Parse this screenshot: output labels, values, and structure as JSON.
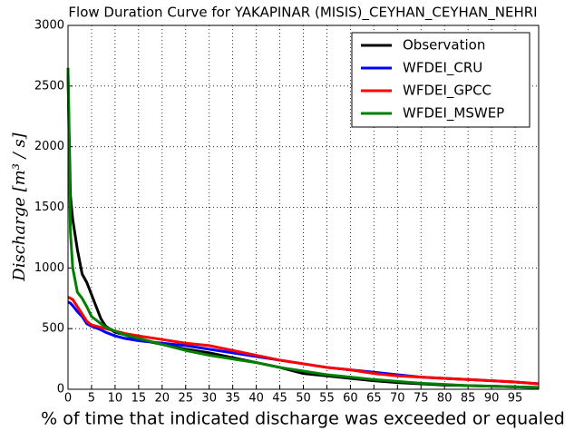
{
  "chart_data": {
    "type": "line",
    "title": "Flow Duration Curve for YAKAPINAR (MISIS)_CEYHAN_CEYHAN_NEHRI",
    "xlabel": "% of time that indicated discharge was exceeded or equaled",
    "ylabel": "Discharge [m³ / s]",
    "x": [
      0,
      0.5,
      1,
      2,
      3,
      4,
      5,
      6,
      7,
      8,
      10,
      12,
      15,
      20,
      25,
      30,
      35,
      40,
      45,
      50,
      55,
      60,
      65,
      70,
      75,
      80,
      85,
      90,
      95,
      100
    ],
    "series": [
      {
        "name": "Observation",
        "color": "#000000",
        "values": [
          2600,
          1600,
          1400,
          1150,
          950,
          880,
          780,
          680,
          580,
          520,
          470,
          450,
          410,
          370,
          330,
          300,
          260,
          220,
          180,
          130,
          110,
          90,
          70,
          55,
          45,
          35,
          30,
          25,
          20,
          15
        ]
      },
      {
        "name": "WFDEI_CRU",
        "color": "#0000ff",
        "values": [
          720,
          710,
          690,
          640,
          600,
          540,
          520,
          505,
          490,
          470,
          440,
          420,
          400,
          380,
          360,
          330,
          300,
          270,
          240,
          210,
          180,
          160,
          140,
          120,
          100,
          90,
          80,
          70,
          60,
          45
        ]
      },
      {
        "name": "WFDEI_GPCC",
        "color": "#ff0000",
        "values": [
          760,
          750,
          740,
          680,
          620,
          560,
          530,
          520,
          510,
          500,
          480,
          460,
          440,
          410,
          380,
          360,
          320,
          280,
          240,
          210,
          180,
          160,
          130,
          110,
          100,
          90,
          80,
          70,
          60,
          45
        ]
      },
      {
        "name": "WFDEI_MSWEP",
        "color": "#008000",
        "values": [
          2650,
          1300,
          1000,
          800,
          750,
          680,
          600,
          570,
          540,
          510,
          480,
          450,
          420,
          370,
          320,
          280,
          250,
          220,
          180,
          150,
          120,
          100,
          80,
          65,
          50,
          40,
          30,
          25,
          20,
          15
        ]
      }
    ],
    "xlim": [
      0,
      100
    ],
    "xticks": [
      0,
      5,
      10,
      15,
      20,
      25,
      30,
      35,
      40,
      45,
      50,
      55,
      60,
      65,
      70,
      75,
      80,
      85,
      90,
      95
    ],
    "ylim": [
      0,
      3000
    ],
    "yticks": [
      0,
      500,
      1000,
      1500,
      2000,
      2500,
      3000
    ],
    "grid": true,
    "legend": "upper right"
  }
}
